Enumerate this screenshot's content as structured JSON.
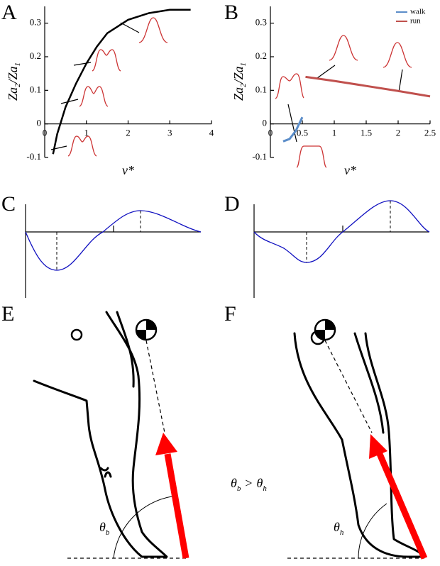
{
  "chart_data": [
    {
      "type": "line",
      "label": "A",
      "y_label": [
        "Za",
        "2",
        "/Za",
        "1"
      ],
      "x_label": "v*",
      "xlim": [
        0,
        4
      ],
      "ylim": [
        -0.1,
        0.35
      ],
      "xticks": [
        0,
        1,
        2,
        3,
        4
      ],
      "yticks": [
        -0.1,
        0,
        0.1,
        0.2,
        0.3
      ],
      "series": [
        {
          "color": "#000000",
          "x": [
            0.2,
            0.3,
            0.5,
            0.75,
            1,
            1.25,
            1.5,
            2,
            2.5,
            3,
            3.5
          ],
          "values": [
            -0.09,
            -0.03,
            0.05,
            0.12,
            0.18,
            0.23,
            0.27,
            0.31,
            0.33,
            0.34,
            0.34
          ]
        }
      ]
    },
    {
      "type": "line",
      "label": "B",
      "y_label": [
        "Za",
        "2",
        "/Za",
        "1"
      ],
      "x_label": "v*",
      "legend": "upper right",
      "xlim": [
        0,
        2.5
      ],
      "ylim": [
        -0.1,
        0.35
      ],
      "xticks": [
        0,
        0.5,
        1,
        1.5,
        2,
        2.5
      ],
      "yticks": [
        -0.1,
        0,
        0.1,
        0.2,
        0.3
      ],
      "series": [
        {
          "name": "walk",
          "color": "#5b8dc9",
          "x": [
            0.2,
            0.3,
            0.4,
            0.5
          ],
          "values": [
            -0.052,
            -0.045,
            -0.02,
            0.02
          ]
        },
        {
          "name": "run",
          "color": "#c0504d",
          "x": [
            0.55,
            1,
            1.5,
            2,
            2.5
          ],
          "values": [
            0.14,
            0.128,
            0.113,
            0.098,
            0.082
          ]
        }
      ]
    }
  ],
  "panels": [
    {
      "label": "C"
    },
    {
      "label": "D"
    },
    {
      "label": "E",
      "angle": {
        "symbol": "θ",
        "subscript": "b"
      }
    },
    {
      "label": "F",
      "angle": {
        "symbol": "θ",
        "subscript": "h"
      }
    }
  ],
  "inequality": {
    "left": {
      "symbol": "θ",
      "subscript": "b"
    },
    "operator": ">",
    "right": {
      "symbol": "θ",
      "subscript": "h"
    }
  }
}
